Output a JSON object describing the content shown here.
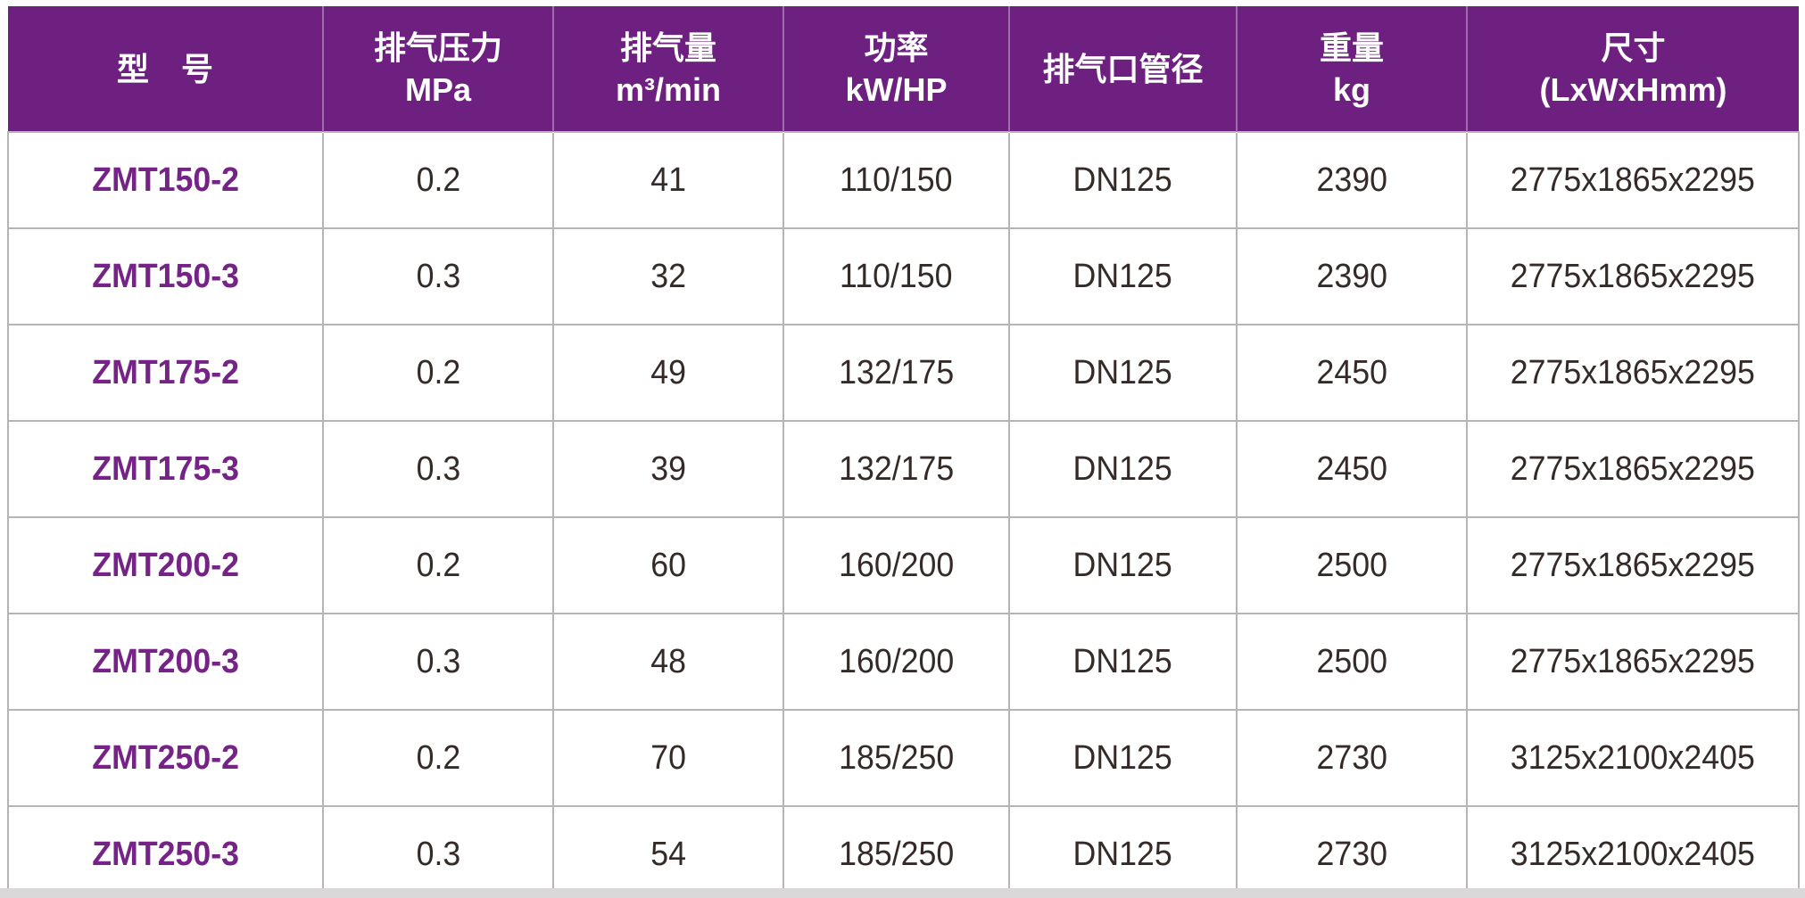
{
  "colors": {
    "header_bg": "#6e2080",
    "header_text": "#ffffff",
    "header_divider": "rgba(255,255,255,0.35)",
    "model_text": "#752387",
    "body_text": "#342b28",
    "grid_line": "#b7b4b4",
    "bottom_strip": "#dad8d8"
  },
  "chart_data": {
    "type": "table",
    "title": "",
    "columns": [
      {
        "id": "model",
        "lines": [
          "型　号"
        ]
      },
      {
        "id": "pressure",
        "lines": [
          "排气压力",
          "MPa"
        ]
      },
      {
        "id": "capacity",
        "lines": [
          "排气量",
          "m³/min"
        ]
      },
      {
        "id": "power",
        "lines": [
          "功率",
          "kW/HP"
        ]
      },
      {
        "id": "outlet_diameter",
        "lines": [
          "排气口管径"
        ]
      },
      {
        "id": "weight",
        "lines": [
          "重量",
          "kg"
        ]
      },
      {
        "id": "dimensions",
        "lines": [
          "尺寸",
          "(LxWxHmm)"
        ]
      }
    ],
    "rows": [
      [
        "ZMT150-2",
        "0.2",
        "41",
        "110/150",
        "DN125",
        "2390",
        "2775x1865x2295"
      ],
      [
        "ZMT150-3",
        "0.3",
        "32",
        "110/150",
        "DN125",
        "2390",
        "2775x1865x2295"
      ],
      [
        "ZMT175-2",
        "0.2",
        "49",
        "132/175",
        "DN125",
        "2450",
        "2775x1865x2295"
      ],
      [
        "ZMT175-3",
        "0.3",
        "39",
        "132/175",
        "DN125",
        "2450",
        "2775x1865x2295"
      ],
      [
        "ZMT200-2",
        "0.2",
        "60",
        "160/200",
        "DN125",
        "2500",
        "2775x1865x2295"
      ],
      [
        "ZMT200-3",
        "0.3",
        "48",
        "160/200",
        "DN125",
        "2500",
        "2775x1865x2295"
      ],
      [
        "ZMT250-2",
        "0.2",
        "70",
        "185/250",
        "DN125",
        "2730",
        "3125x2100x2405"
      ],
      [
        "ZMT250-3",
        "0.3",
        "54",
        "185/250",
        "DN125",
        "2730",
        "3125x2100x2405"
      ]
    ]
  }
}
